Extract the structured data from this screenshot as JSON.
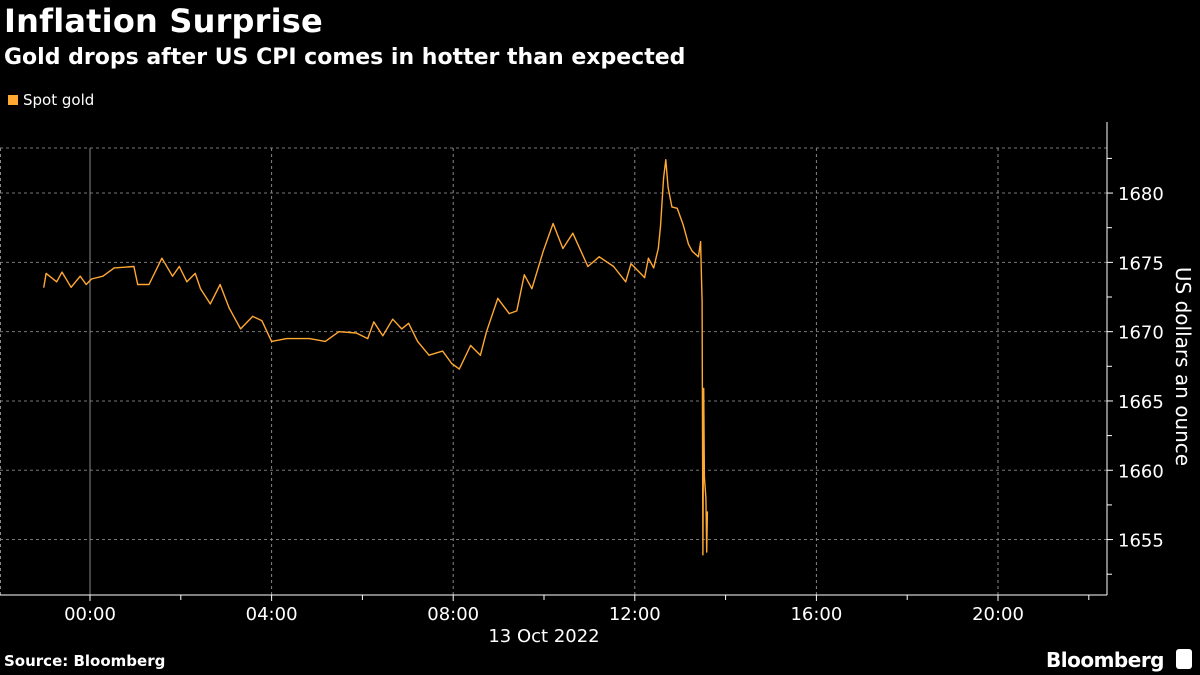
{
  "header": {
    "title": "Inflation Surprise",
    "subtitle": "Gold drops after US CPI comes in hotter than expected"
  },
  "footer": {
    "source": "Source: Bloomberg",
    "brand": "Bloomberg",
    "brand_icon": "bloomberg-terminal-icon"
  },
  "chart_data": {
    "type": "line",
    "title": "Inflation Surprise",
    "subtitle": "Gold drops after US CPI comes in hotter than expected",
    "xlabel": "13 Oct 2022",
    "ylabel": "US dollars an ounce",
    "x_ticks": [
      "00:00",
      "04:00",
      "08:00",
      "12:00",
      "16:00",
      "20:00"
    ],
    "y_ticks": [
      "1655",
      "1660",
      "1665",
      "1670",
      "1675",
      "1680"
    ],
    "xlim": [
      "2022-10-12 22:00",
      "2022-10-13 22:25"
    ],
    "ylim": [
      1651,
      1683.25
    ],
    "grid": true,
    "y_axis_side": "right",
    "legend_placement": "top-left",
    "series": [
      {
        "name": "Spot gold",
        "color": "#ffa832",
        "points": [
          [
            "2022-10-12 22:59",
            1673.2
          ],
          [
            "2022-10-12 23:02",
            1674.2
          ],
          [
            "2022-10-12 23:16",
            1673.6
          ],
          [
            "2022-10-12 23:23",
            1674.3
          ],
          [
            "2022-10-12 23:35",
            1673.2
          ],
          [
            "2022-10-12 23:47",
            1674.0
          ],
          [
            "2022-10-12 23:55",
            1673.4
          ],
          [
            "2022-10-13 00:02",
            1673.8
          ],
          [
            "2022-10-13 00:17",
            1674.0
          ],
          [
            "2022-10-13 00:32",
            1674.6
          ],
          [
            "2022-10-13 00:58",
            1674.7
          ],
          [
            "2022-10-13 01:03",
            1673.4
          ],
          [
            "2022-10-13 01:18",
            1673.4
          ],
          [
            "2022-10-13 01:35",
            1675.3
          ],
          [
            "2022-10-13 01:49",
            1674.0
          ],
          [
            "2022-10-13 01:58",
            1674.7
          ],
          [
            "2022-10-13 02:08",
            1673.6
          ],
          [
            "2022-10-13 02:19",
            1674.2
          ],
          [
            "2022-10-13 02:26",
            1673.1
          ],
          [
            "2022-10-13 02:39",
            1672.0
          ],
          [
            "2022-10-13 02:52",
            1673.4
          ],
          [
            "2022-10-13 03:04",
            1671.7
          ],
          [
            "2022-10-13 03:19",
            1670.2
          ],
          [
            "2022-10-13 03:35",
            1671.1
          ],
          [
            "2022-10-13 03:47",
            1670.8
          ],
          [
            "2022-10-13 04:00",
            1669.3
          ],
          [
            "2022-10-13 04:20",
            1669.5
          ],
          [
            "2022-10-13 04:50",
            1669.5
          ],
          [
            "2022-10-13 05:11",
            1669.3
          ],
          [
            "2022-10-13 05:29",
            1670.0
          ],
          [
            "2022-10-13 05:52",
            1669.9
          ],
          [
            "2022-10-13 06:07",
            1669.5
          ],
          [
            "2022-10-13 06:15",
            1670.7
          ],
          [
            "2022-10-13 06:27",
            1669.7
          ],
          [
            "2022-10-13 06:40",
            1670.9
          ],
          [
            "2022-10-13 06:52",
            1670.2
          ],
          [
            "2022-10-13 07:01",
            1670.6
          ],
          [
            "2022-10-13 07:13",
            1669.3
          ],
          [
            "2022-10-13 07:28",
            1668.3
          ],
          [
            "2022-10-13 07:46",
            1668.6
          ],
          [
            "2022-10-13 07:58",
            1667.7
          ],
          [
            "2022-10-13 08:08",
            1667.3
          ],
          [
            "2022-10-13 08:23",
            1669.0
          ],
          [
            "2022-10-13 08:36",
            1668.3
          ],
          [
            "2022-10-13 08:44",
            1670.0
          ],
          [
            "2022-10-13 08:59",
            1672.4
          ],
          [
            "2022-10-13 09:14",
            1671.3
          ],
          [
            "2022-10-13 09:24",
            1671.5
          ],
          [
            "2022-10-13 09:34",
            1674.1
          ],
          [
            "2022-10-13 09:44",
            1673.1
          ],
          [
            "2022-10-13 09:59",
            1675.8
          ],
          [
            "2022-10-13 10:12",
            1677.8
          ],
          [
            "2022-10-13 10:25",
            1676.0
          ],
          [
            "2022-10-13 10:38",
            1677.1
          ],
          [
            "2022-10-13 10:58",
            1674.7
          ],
          [
            "2022-10-13 11:13",
            1675.4
          ],
          [
            "2022-10-13 11:32",
            1674.7
          ],
          [
            "2022-10-13 11:48",
            1673.6
          ],
          [
            "2022-10-13 11:55",
            1674.9
          ],
          [
            "2022-10-13 12:13",
            1673.9
          ],
          [
            "2022-10-13 12:18",
            1675.3
          ],
          [
            "2022-10-13 12:25",
            1674.6
          ],
          [
            "2022-10-13 12:31",
            1676.0
          ],
          [
            "2022-10-13 12:34",
            1677.6
          ],
          [
            "2022-10-13 12:38",
            1681.1
          ],
          [
            "2022-10-13 12:41",
            1682.4
          ],
          [
            "2022-10-13 12:44",
            1680.4
          ],
          [
            "2022-10-13 12:49",
            1679.0
          ],
          [
            "2022-10-13 12:56",
            1678.9
          ],
          [
            "2022-10-13 13:04",
            1677.7
          ],
          [
            "2022-10-13 13:11",
            1676.3
          ],
          [
            "2022-10-13 13:16",
            1675.8
          ],
          [
            "2022-10-13 13:24",
            1675.4
          ],
          [
            "2022-10-13 13:27",
            1676.5
          ],
          [
            "2022-10-13 13:28",
            1674.1
          ],
          [
            "2022-10-13 13:29",
            1672.2
          ],
          [
            "2022-10-13 13:30",
            1653.9
          ],
          [
            "2022-10-13 13:31",
            1665.9
          ],
          [
            "2022-10-13 13:32",
            1659.5
          ],
          [
            "2022-10-13 13:34",
            1658.0
          ],
          [
            "2022-10-13 13:35",
            1654.1
          ],
          [
            "2022-10-13 13:36",
            1657.0
          ]
        ]
      }
    ]
  }
}
